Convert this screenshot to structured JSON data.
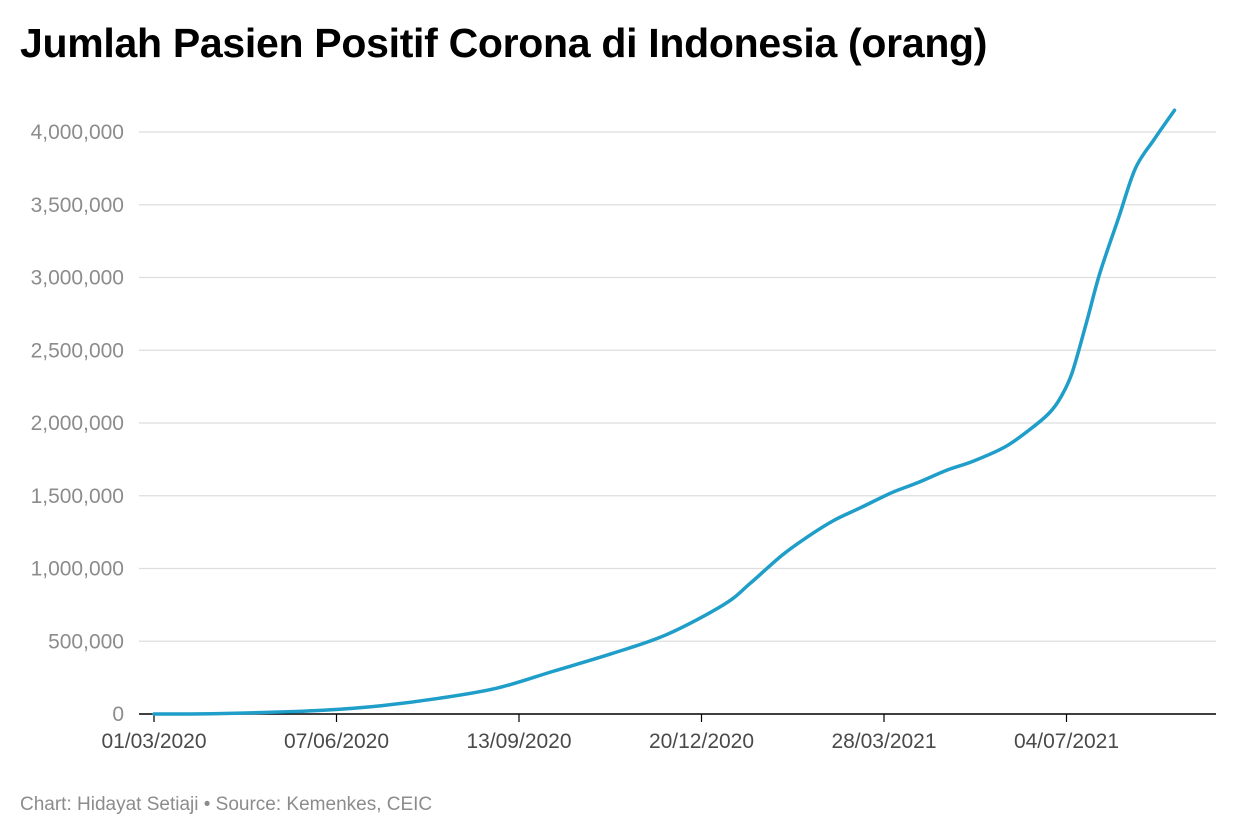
{
  "chart_data": {
    "type": "line",
    "title": "Jumlah Pasien Positif Corona di Indonesia (orang)",
    "xlabel": "",
    "ylabel": "",
    "ylim": [
      0,
      4000000
    ],
    "y_ticks": [
      0,
      500000,
      1000000,
      1500000,
      2000000,
      2500000,
      3000000,
      3500000,
      4000000
    ],
    "y_tick_labels": [
      "0",
      "500,000",
      "1,000,000",
      "1,500,000",
      "2,000,000",
      "2,500,000",
      "3,000,000",
      "3,500,000",
      "4,000,000"
    ],
    "x_ticks": [
      "2020-03-01",
      "2020-06-07",
      "2020-09-13",
      "2020-12-20",
      "2021-03-28",
      "2021-07-04"
    ],
    "x_tick_labels": [
      "01/03/2020",
      "07/06/2020",
      "13/09/2020",
      "20/12/2020",
      "28/03/2021",
      "04/07/2021"
    ],
    "grid": "horizontal",
    "legend": "none",
    "color": "#1f9ec9",
    "series": [
      {
        "x": [
          "2020-03-01",
          "2020-04-01",
          "2020-05-01",
          "2020-06-01",
          "2020-07-01",
          "2020-08-01",
          "2020-09-01",
          "2020-10-01",
          "2020-11-01",
          "2020-12-01",
          "2021-01-01",
          "2021-01-15",
          "2021-02-01",
          "2021-02-15",
          "2021-03-01",
          "2021-03-15",
          "2021-04-01",
          "2021-04-15",
          "2021-05-01",
          "2021-05-15",
          "2021-06-01",
          "2021-06-15",
          "2021-06-25",
          "2021-07-01",
          "2021-07-07",
          "2021-07-15",
          "2021-07-22",
          "2021-08-01",
          "2021-08-10",
          "2021-08-20",
          "2021-08-31"
        ],
        "values": [
          2,
          1700,
          11000,
          27000,
          57000,
          108000,
          177000,
          292000,
          412000,
          544000,
          752000,
          896000,
          1089000,
          1218000,
          1330000,
          1415000,
          1520000,
          1589000,
          1677000,
          1738000,
          1836000,
          1962000,
          2072000,
          2179000,
          2345000,
          2704000,
          3033000,
          3410000,
          3750000,
          3948000,
          4150000
        ]
      }
    ]
  },
  "footer": "Chart: Hidayat Setiaji • Source: Kemenkes, CEIC"
}
